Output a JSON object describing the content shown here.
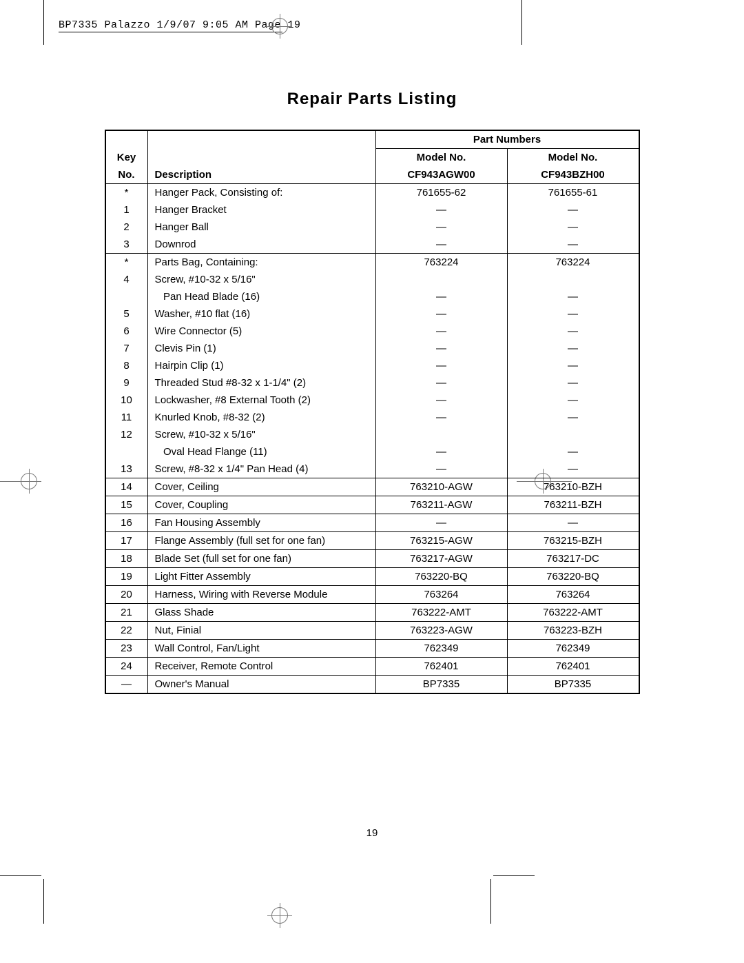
{
  "print_header": "BP7335 Palazzo  1/9/07  9:05 AM  Page 19",
  "title": "Repair Parts Listing",
  "page_number": "19",
  "table": {
    "headers": {
      "part_numbers_span": "Part Numbers",
      "key_line1": "Key",
      "key_line2": "No.",
      "desc": "Description",
      "model1_line1": "Model No.",
      "model1_line2": "CF943AGW00",
      "model2_line1": "Model No.",
      "model2_line2": "CF943BZH00"
    },
    "sections": [
      {
        "rows": [
          {
            "key": "*",
            "desc": "Hanger Pack, Consisting of:",
            "p1": "761655-62",
            "p2": "761655-61"
          },
          {
            "key": "1",
            "desc": "Hanger Bracket",
            "p1": "—",
            "p2": "—"
          },
          {
            "key": "2",
            "desc": "Hanger Ball",
            "p1": "—",
            "p2": "—"
          },
          {
            "key": "3",
            "desc": "Downrod",
            "p1": "—",
            "p2": "—"
          }
        ]
      },
      {
        "rows": [
          {
            "key": "*",
            "desc": "Parts Bag, Containing:",
            "p1": "763224",
            "p2": "763224"
          },
          {
            "key": "4",
            "desc": "Screw, #10-32 x 5/16\"",
            "p1": "",
            "p2": ""
          },
          {
            "key": "",
            "desc": "   Pan Head Blade (16)",
            "p1": "—",
            "p2": "—"
          },
          {
            "key": "5",
            "desc": "Washer, #10 flat (16)",
            "p1": "—",
            "p2": "—"
          },
          {
            "key": "6",
            "desc": "Wire Connector (5)",
            "p1": "—",
            "p2": "—"
          },
          {
            "key": "7",
            "desc": "Clevis Pin (1)",
            "p1": "—",
            "p2": "—"
          },
          {
            "key": "8",
            "desc": "Hairpin Clip (1)",
            "p1": "—",
            "p2": "—"
          },
          {
            "key": "9",
            "desc": "Threaded Stud #8-32 x 1-1/4\" (2)",
            "p1": "—",
            "p2": "—"
          },
          {
            "key": "10",
            "desc": "Lockwasher, #8 External Tooth (2)",
            "p1": "—",
            "p2": "—"
          },
          {
            "key": "11",
            "desc": "Knurled Knob, #8-32 (2)",
            "p1": "—",
            "p2": "—"
          },
          {
            "key": "12",
            "desc": "Screw, #10-32 x 5/16\"",
            "p1": "",
            "p2": ""
          },
          {
            "key": "",
            "desc": "   Oval Head Flange (11)",
            "p1": "—",
            "p2": "—"
          },
          {
            "key": "13",
            "desc": "Screw, #8-32 x 1/4\" Pan Head  (4)",
            "p1": "—",
            "p2": "—"
          }
        ]
      },
      {
        "rows": [
          {
            "key": "14",
            "desc": "Cover, Ceiling",
            "p1": "763210-AGW",
            "p2": "763210-BZH"
          }
        ]
      },
      {
        "rows": [
          {
            "key": "15",
            "desc": "Cover, Coupling",
            "p1": "763211-AGW",
            "p2": "763211-BZH"
          }
        ]
      },
      {
        "rows": [
          {
            "key": "16",
            "desc": "Fan Housing Assembly",
            "p1": "—",
            "p2": "—"
          }
        ]
      },
      {
        "rows": [
          {
            "key": "17",
            "desc": "Flange Assembly (full set for one fan)",
            "p1": "763215-AGW",
            "p2": "763215-BZH"
          }
        ]
      },
      {
        "rows": [
          {
            "key": "18",
            "desc": "Blade Set (full set for one fan)",
            "p1": "763217-AGW",
            "p2": "763217-DC"
          }
        ]
      },
      {
        "rows": [
          {
            "key": "19",
            "desc": "Light Fitter Assembly",
            "p1": "763220-BQ",
            "p2": "763220-BQ"
          }
        ]
      },
      {
        "rows": [
          {
            "key": "20",
            "desc": "Harness, Wiring with Reverse Module",
            "p1": "763264",
            "p2": "763264"
          }
        ]
      },
      {
        "rows": [
          {
            "key": "21",
            "desc": "Glass Shade",
            "p1": "763222-AMT",
            "p2": "763222-AMT"
          }
        ]
      },
      {
        "rows": [
          {
            "key": "22",
            "desc": "Nut, Finial",
            "p1": "763223-AGW",
            "p2": "763223-BZH"
          }
        ]
      },
      {
        "rows": [
          {
            "key": "23",
            "desc": "Wall Control, Fan/Light",
            "p1": "762349",
            "p2": "762349"
          }
        ]
      },
      {
        "rows": [
          {
            "key": "24",
            "desc": "Receiver, Remote Control",
            "p1": "762401",
            "p2": "762401"
          }
        ]
      },
      {
        "rows": [
          {
            "key": "—",
            "desc": "Owner's Manual",
            "p1": "BP7335",
            "p2": "BP7335"
          }
        ]
      }
    ]
  },
  "layout": {
    "page_number_top": 1200
  },
  "colors": {
    "text": "#000000",
    "background": "#ffffff",
    "crop_gray": "#7a7a7a"
  }
}
